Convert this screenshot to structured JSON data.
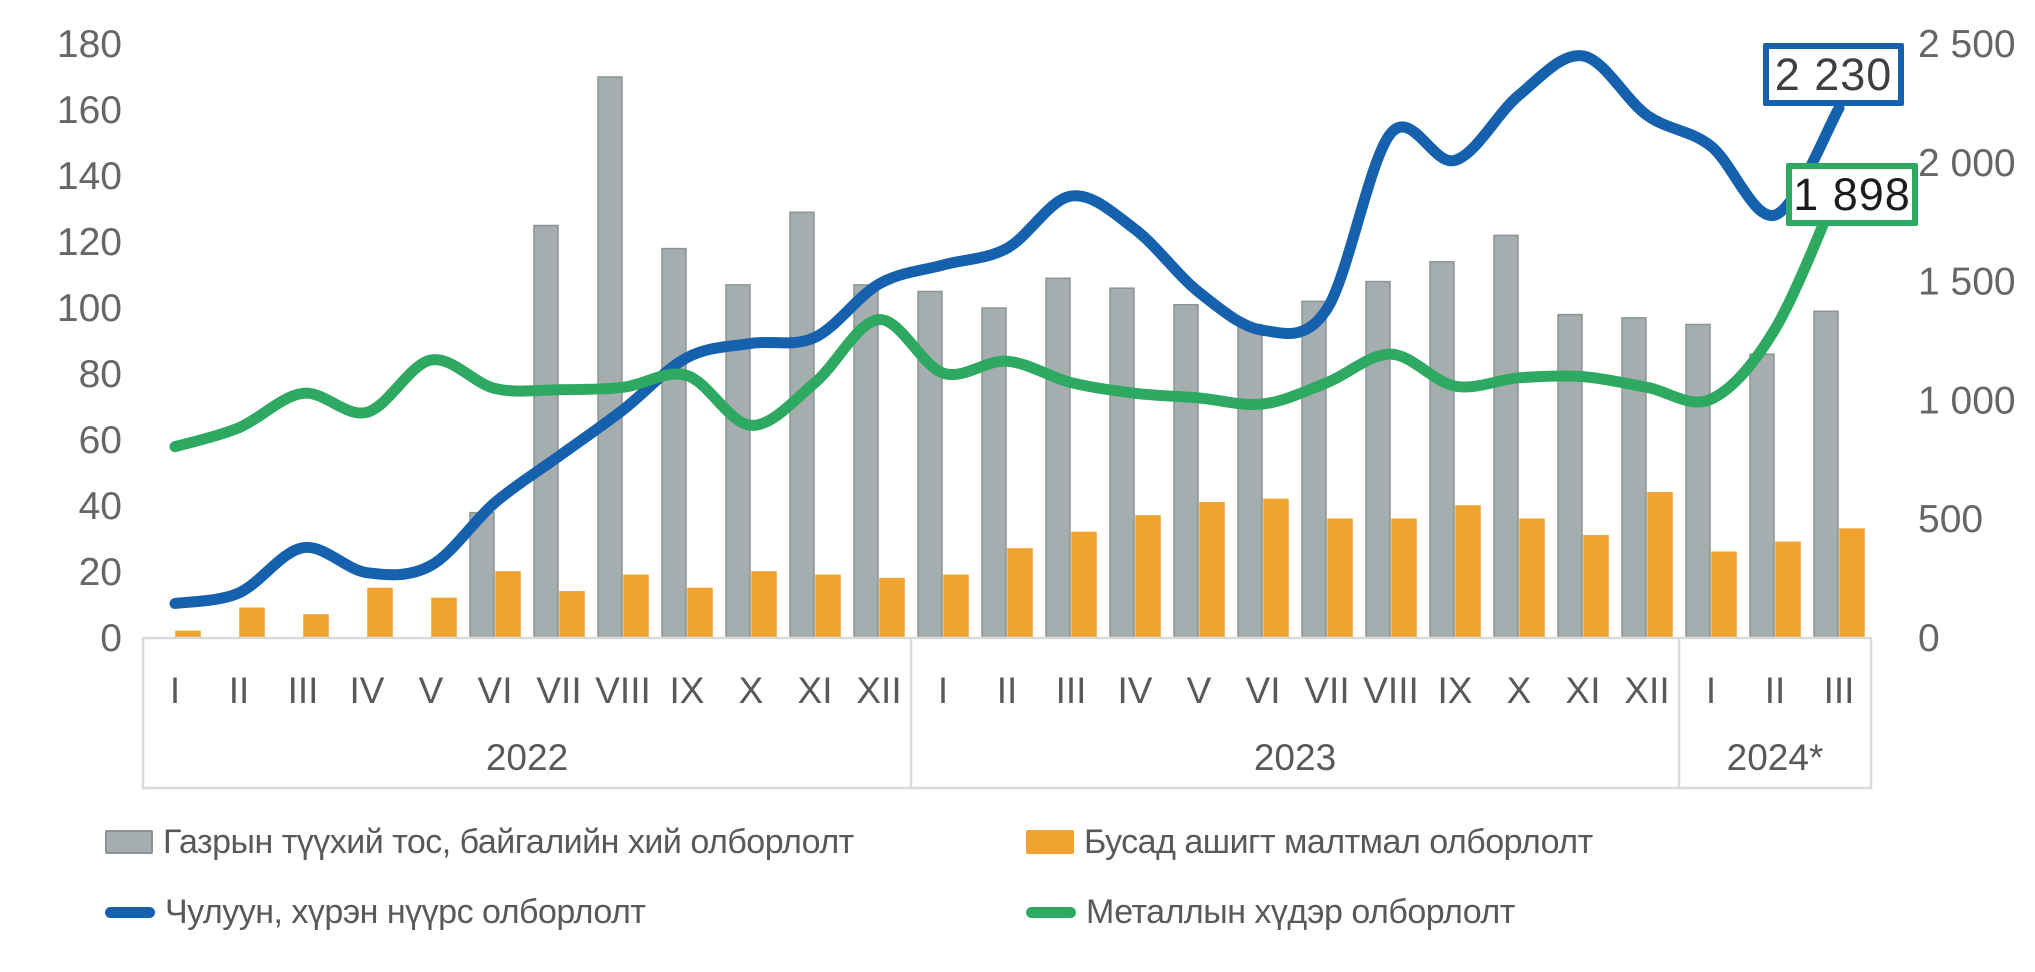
{
  "chart_data": {
    "type": "combo-bar-line",
    "title": "",
    "x_groups": [
      {
        "year": "2022",
        "months": [
          "I",
          "II",
          "III",
          "IV",
          "V",
          "VI",
          "VII",
          "VIII",
          "IX",
          "X",
          "XI",
          "XII"
        ]
      },
      {
        "year": "2023",
        "months": [
          "I",
          "II",
          "III",
          "IV",
          "V",
          "VI",
          "VII",
          "VIII",
          "IX",
          "X",
          "XI",
          "XII"
        ]
      },
      {
        "year": "2024*",
        "months": [
          "I",
          "II",
          "III"
        ]
      }
    ],
    "axes": {
      "left": {
        "min": 0,
        "max": 180,
        "step": 20,
        "tick_labels": [
          "0",
          "20",
          "40",
          "60",
          "80",
          "100",
          "120",
          "140",
          "160",
          "180"
        ],
        "tick_values": [
          0,
          20,
          40,
          60,
          80,
          100,
          120,
          140,
          160,
          180
        ]
      },
      "right": {
        "min": 0,
        "max": 2500,
        "step": 500,
        "tick_labels": [
          "0",
          "500",
          "1 000",
          "1 500",
          "2 000",
          "2 500"
        ],
        "tick_values": [
          0,
          500,
          1000,
          1500,
          2000,
          2500
        ]
      }
    },
    "series": [
      {
        "id": "oil-gas",
        "name": "Газрын түүхий тос, байгалийн хий олборлолт",
        "type": "bar",
        "axis": "left",
        "color": "#A6ADAE",
        "border": "#8B9394",
        "values": [
          null,
          null,
          null,
          null,
          null,
          38,
          125,
          170,
          118,
          107,
          129,
          107,
          105,
          100,
          109,
          106,
          101,
          95,
          102,
          108,
          114,
          122,
          98,
          97,
          95,
          86,
          99
        ]
      },
      {
        "id": "other-minerals",
        "name": "Бусад ашигт малтмал олборлолт",
        "type": "bar",
        "axis": "left",
        "color": "#F0A32F",
        "border": "#F0A32F",
        "values": [
          2,
          9,
          7,
          15,
          12,
          20,
          14,
          19,
          15,
          20,
          19,
          18,
          19,
          27,
          32,
          37,
          41,
          42,
          36,
          36,
          40,
          36,
          31,
          44,
          26,
          29,
          33
        ]
      },
      {
        "id": "coal",
        "name": "Чулуун, хүрэн нүүрс олборлолт",
        "type": "line",
        "axis": "right",
        "color": "#1661AE",
        "values": [
          145,
          190,
          380,
          275,
          305,
          570,
          765,
          960,
          1180,
          1240,
          1265,
          1490,
          1570,
          1640,
          1860,
          1720,
          1455,
          1295,
          1385,
          2125,
          2010,
          2285,
          2450,
          2200,
          2070,
          1780,
          2230
        ]
      },
      {
        "id": "metal-ore",
        "name": "Металлын хүдэр олборлолт",
        "type": "line",
        "axis": "right",
        "color": "#2EA962",
        "values": [
          805,
          885,
          1030,
          950,
          1170,
          1050,
          1045,
          1055,
          1105,
          895,
          1075,
          1340,
          1115,
          1165,
          1075,
          1030,
          1010,
          985,
          1075,
          1195,
          1060,
          1095,
          1100,
          1055,
          1005,
          1300,
          1898
        ]
      }
    ],
    "callouts": [
      {
        "label": "2 230",
        "series": "coal",
        "color": "#1661AE"
      },
      {
        "label": "1 898",
        "series": "metal-ore",
        "color": "#2EA962"
      }
    ],
    "style": {
      "axis_text_color": "#666666",
      "band_line_color": "#D9D9D9",
      "background": "#FFFFFF"
    }
  },
  "legend": {
    "items": [
      {
        "shape": "bar",
        "series": "oil-gas"
      },
      {
        "shape": "bar",
        "series": "other-minerals"
      },
      {
        "shape": "line",
        "series": "coal"
      },
      {
        "shape": "line",
        "series": "metal-ore"
      }
    ]
  }
}
